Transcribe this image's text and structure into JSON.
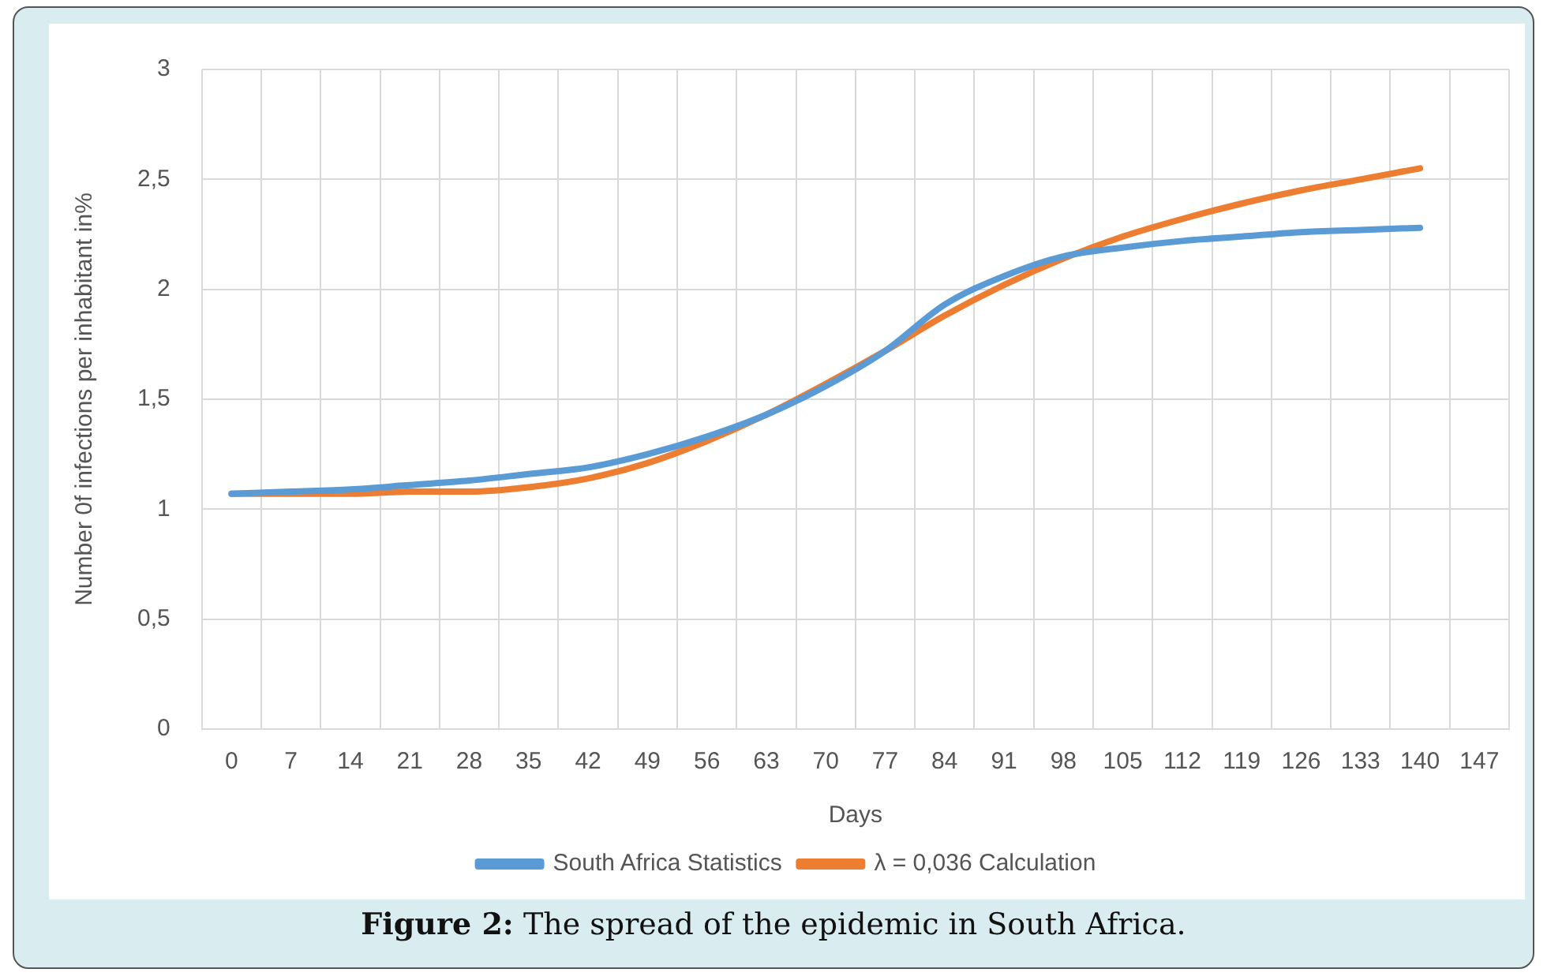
{
  "chart_data": {
    "type": "line",
    "xlabel": "Days",
    "ylabel": "Number 0f infections per inhabitant in%",
    "categories": [
      "0",
      "7",
      "14",
      "21",
      "28",
      "35",
      "42",
      "49",
      "56",
      "63",
      "70",
      "77",
      "84",
      "91",
      "98",
      "105",
      "112",
      "119",
      "126",
      "133",
      "140",
      "147"
    ],
    "series": [
      {
        "name": "South Africa Statistics",
        "color": "#5b9bd5",
        "values": [
          1.07,
          1.08,
          1.09,
          1.11,
          1.13,
          1.16,
          1.19,
          1.25,
          1.33,
          1.43,
          1.56,
          1.72,
          1.93,
          2.06,
          2.15,
          2.19,
          2.22,
          2.24,
          2.26,
          2.27,
          2.28,
          null
        ]
      },
      {
        "name": "λ = 0,036 Calculation",
        "color": "#ed7d31",
        "values": [
          1.07,
          1.07,
          1.07,
          1.08,
          1.08,
          1.1,
          1.14,
          1.21,
          1.31,
          1.43,
          1.57,
          1.72,
          1.88,
          2.02,
          2.14,
          2.24,
          2.32,
          2.39,
          2.45,
          2.5,
          2.55,
          null
        ]
      }
    ],
    "ylim": [
      0,
      3
    ],
    "yticks": [
      0,
      {
        "value": 0.5,
        "label": "0,5"
      },
      1,
      {
        "value": 1.5,
        "label": "1,5"
      },
      2,
      {
        "value": 2.5,
        "label": "2,5"
      },
      3
    ],
    "grid": true,
    "legend": "bottom",
    "marker": "none",
    "line_style": "solid",
    "annotations": [
      "Figure 2: The spread of the epidemic in South Africa."
    ]
  }
}
